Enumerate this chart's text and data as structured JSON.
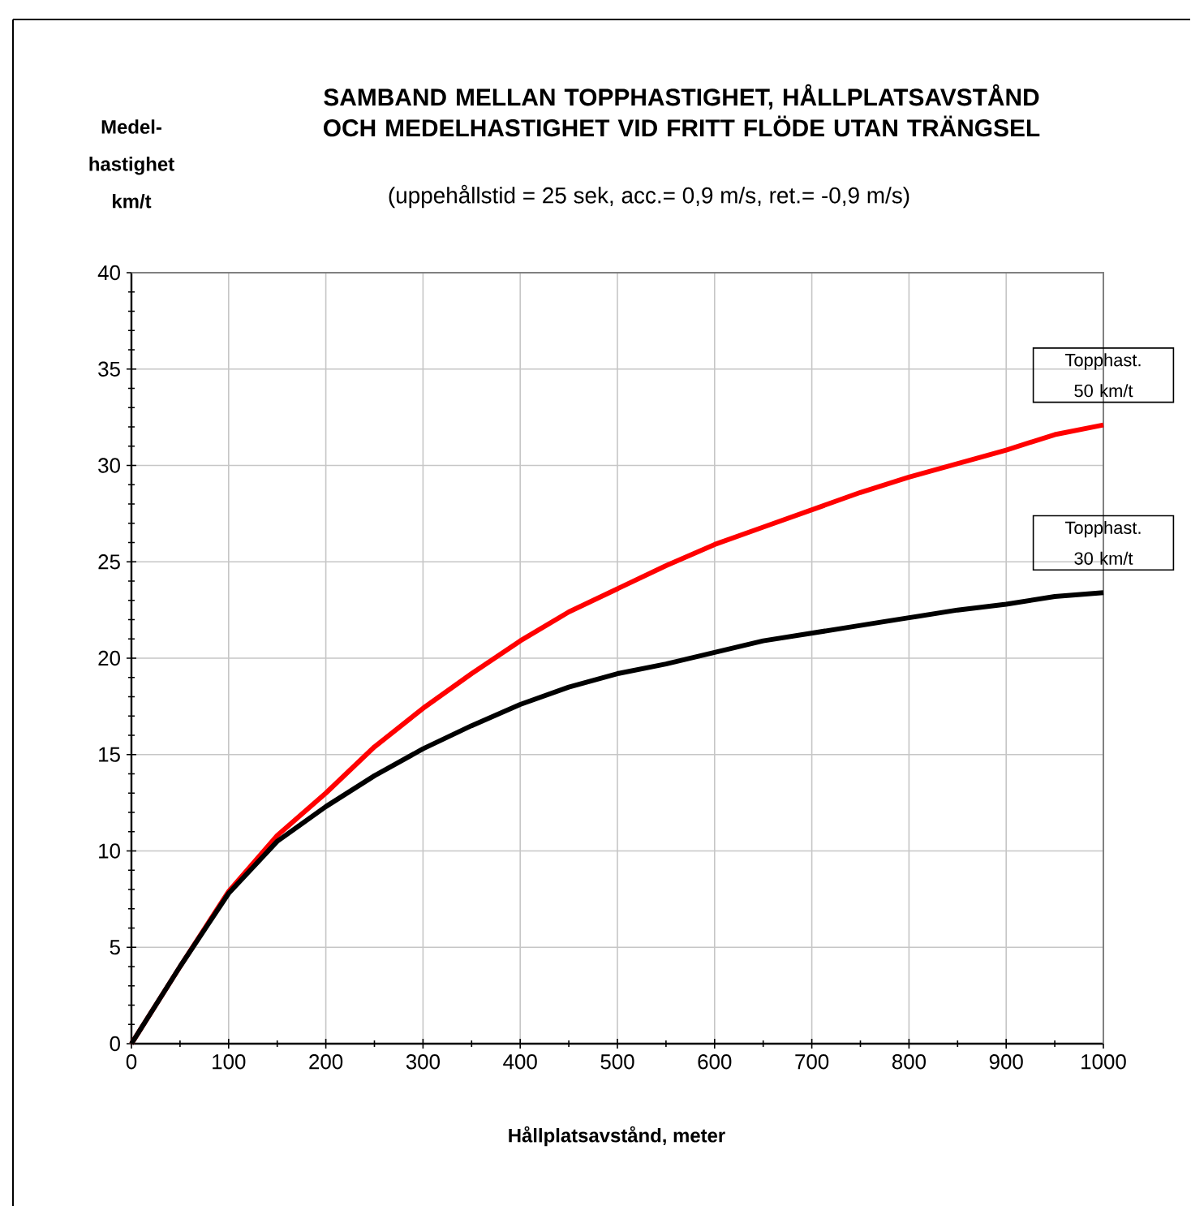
{
  "chart_data": {
    "type": "line",
    "title": "SAMBAND MELLAN TOPPHASTIGHET, HÅLLPLATSAVSTÅND OCH MEDELHASTIGHET VID FRITT FLÖDE UTAN TRÄNGSEL",
    "subtitle": "(uppehållstid = 25 sek, acc.= 0,9 m/s, ret.= -0,9 m/s)",
    "xlabel": "Hållplatsavstånd, meter",
    "ylabel": "Medel-hastighet km/t",
    "x": [
      0,
      50,
      100,
      150,
      200,
      250,
      300,
      350,
      400,
      450,
      500,
      550,
      600,
      650,
      700,
      750,
      800,
      850,
      900,
      950,
      1000
    ],
    "series": [
      {
        "name": "Topphast. 50 km/t",
        "color": "#ff0000",
        "values": [
          0,
          4,
          7.9,
          10.8,
          13.0,
          15.4,
          17.4,
          19.2,
          20.9,
          22.4,
          23.6,
          24.8,
          25.9,
          26.8,
          27.7,
          28.6,
          29.4,
          30.1,
          30.8,
          31.6,
          32.1
        ]
      },
      {
        "name": "Topphast. 30 km/t",
        "color": "#000000",
        "values": [
          0,
          4,
          7.8,
          10.5,
          12.3,
          13.9,
          15.3,
          16.5,
          17.6,
          18.5,
          19.2,
          19.7,
          20.3,
          20.9,
          21.3,
          21.7,
          22.1,
          22.5,
          22.8,
          23.2,
          23.4
        ]
      }
    ],
    "xlim": [
      0,
      1000
    ],
    "ylim": [
      0,
      40
    ],
    "xticks": [
      0,
      100,
      200,
      300,
      400,
      500,
      600,
      700,
      800,
      900,
      1000
    ],
    "yticks": [
      0,
      5,
      10,
      15,
      20,
      25,
      30,
      35,
      40
    ],
    "grid": true,
    "legend": false,
    "marker": "none",
    "line_style": "solid"
  }
}
